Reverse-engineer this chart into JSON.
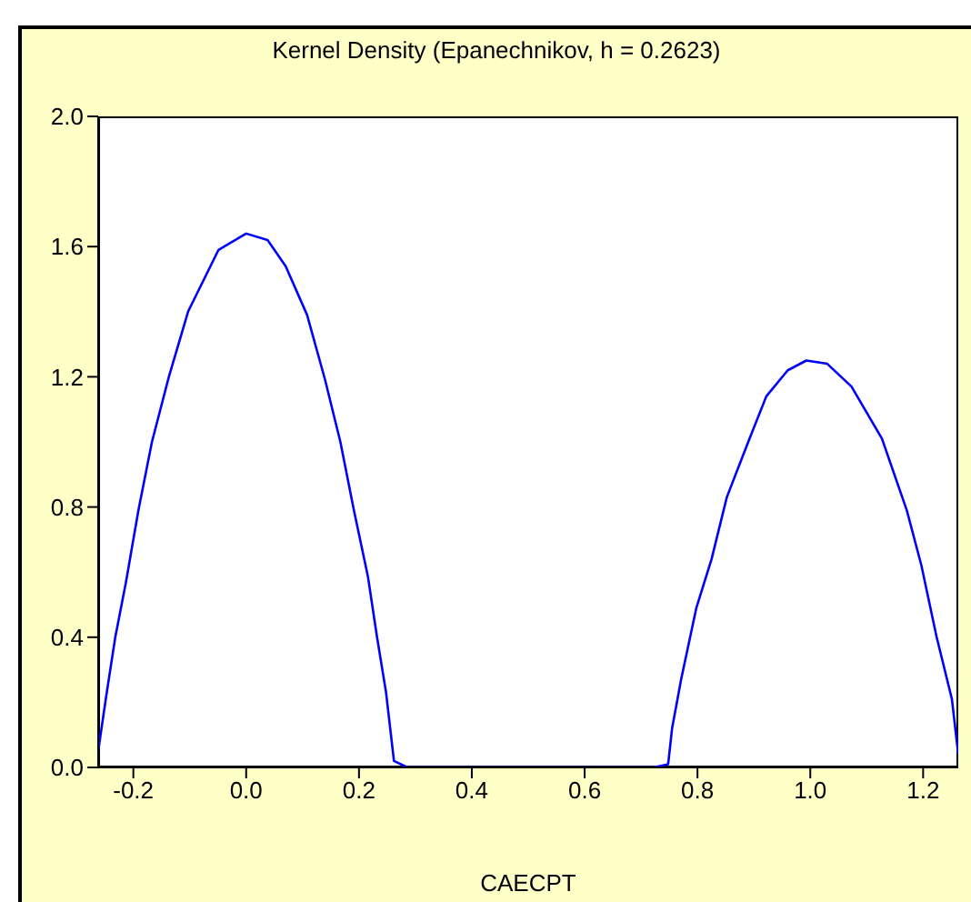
{
  "chart_data": {
    "type": "line",
    "title": "Kernel Density (Epanechnikov, h =  0.2623)",
    "xlabel": "CAECPT",
    "x": [
      -0.2623,
      -0.248,
      -0.232,
      -0.213,
      -0.191,
      -0.167,
      -0.137,
      -0.103,
      -0.049,
      0.0,
      0.038,
      0.07,
      0.108,
      0.14,
      0.167,
      0.191,
      0.216,
      0.232,
      0.248,
      0.262,
      0.286,
      0.723,
      0.748,
      0.755,
      0.771,
      0.798,
      0.825,
      0.852,
      0.89,
      0.922,
      0.96,
      0.993,
      1.03,
      1.073,
      1.127,
      1.171,
      1.197,
      1.224,
      1.251,
      1.2623
    ],
    "series": [
      {
        "color": "#0000ff",
        "values": [
          0.05,
          0.22,
          0.4,
          0.57,
          0.79,
          1.0,
          1.2,
          1.4,
          1.59,
          1.64,
          1.62,
          1.54,
          1.39,
          1.19,
          1.0,
          0.79,
          0.585,
          0.4,
          0.23,
          0.02,
          0.0,
          0.0,
          0.01,
          0.12,
          0.27,
          0.49,
          0.64,
          0.83,
          1.0,
          1.14,
          1.22,
          1.25,
          1.24,
          1.17,
          1.01,
          0.79,
          0.62,
          0.4,
          0.21,
          0.04
        ]
      }
    ],
    "xlim": [
      -0.2623,
      1.2623
    ],
    "xticks": [
      -0.2,
      {
        "value": 0,
        "label": "0.0"
      },
      0.2,
      0.4,
      0.6,
      0.8,
      {
        "value": 1,
        "label": "1.0"
      },
      1.2
    ],
    "ylim": [
      0,
      2
    ],
    "yticks": [
      {
        "value": 0,
        "label": "0.0"
      },
      0.4,
      0.8,
      1.2,
      1.6,
      {
        "value": 2,
        "label": "2.0"
      }
    ],
    "grid": false,
    "legend": false,
    "marker": "none",
    "line_style": "solid"
  }
}
